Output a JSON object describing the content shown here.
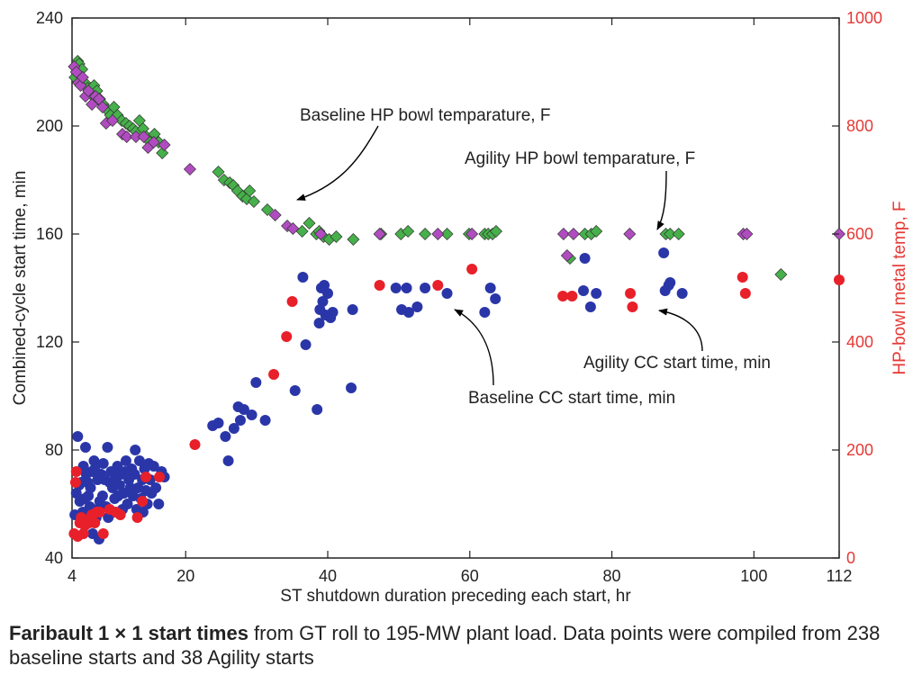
{
  "caption": {
    "bold": "Faribault 1 × 1 start times",
    "rest": " from GT roll to 195-MW plant load. Data points were compiled from 238 baseline starts and 38 Agility starts"
  },
  "chart_data": {
    "type": "scatter",
    "xlabel": "ST shutdown duration preceding each start, hr",
    "ylabel": "Combined-cycle start time, min",
    "y2label": "HP-bowl metal temp, F",
    "xlim": [
      4,
      112
    ],
    "ylim": [
      40,
      240
    ],
    "y2lim": [
      0,
      1000
    ],
    "xticks": [
      "4",
      "20",
      "40",
      "60",
      "80",
      "100",
      "112"
    ],
    "xtick_values": [
      4,
      20,
      40,
      60,
      80,
      100,
      112
    ],
    "yticks": [
      "40",
      "80",
      "120",
      "160",
      "200",
      "240"
    ],
    "ytick_values": [
      40,
      80,
      120,
      160,
      200,
      240
    ],
    "y2ticks": [
      "0",
      "200",
      "400",
      "600",
      "800",
      "1000"
    ],
    "y2tick_values": [
      0,
      200,
      400,
      600,
      800,
      1000
    ],
    "grid": false,
    "colors": {
      "baseline_cc": "#2a36a8",
      "agility_cc": "#e8202a",
      "baseline_temp": "#46b04a",
      "agility_temp": "#b04cc0",
      "right_axis": "#e53935",
      "pointer": "#000000"
    },
    "annotations": [
      {
        "text": "Baseline HP bowl temparature, F",
        "series": "Baseline HP bowl temparature, F"
      },
      {
        "text": "Agility HP bowl temparature, F",
        "series": "Agility HP bowl temparature, F"
      },
      {
        "text": "Agility CC start time, min",
        "series": "Agility CC start time, min"
      },
      {
        "text": "Baseline CC start time, min",
        "series": "Baseline CC start time, min"
      }
    ],
    "series": [
      {
        "name": "Baseline CC start time, min",
        "marker": "circle",
        "axis": "left",
        "x": [
          4.4,
          4.6,
          4.8,
          5.0,
          5.1,
          5.3,
          5.5,
          5.6,
          5.8,
          5.9,
          6.0,
          6.2,
          6.3,
          6.5,
          6.6,
          6.8,
          6.9,
          7.1,
          7.2,
          7.4,
          7.5,
          7.6,
          7.8,
          7.9,
          8.1,
          8.3,
          8.4,
          8.6,
          8.8,
          9.0,
          9.1,
          9.3,
          9.5,
          9.7,
          9.8,
          10.0,
          10.2,
          10.4,
          10.5,
          10.7,
          10.9,
          11.1,
          11.3,
          11.5,
          11.6,
          11.8,
          12.0,
          12.2,
          12.4,
          12.6,
          12.8,
          12.9,
          13.1,
          13.3,
          13.5,
          13.7,
          13.9,
          14.0,
          14.2,
          14.4,
          14.6,
          14.8,
          15.0,
          15.2,
          15.5,
          15.8,
          16.2,
          16.6,
          17.0,
          23.8,
          24.6,
          25.6,
          26.0,
          26.8,
          27.4,
          27.7,
          28.2,
          29.3,
          29.9,
          31.2,
          35.4,
          36.5,
          36.9,
          38.5,
          38.8,
          38.9,
          39.1,
          39.3,
          39.5,
          39.7,
          40.0,
          40.4,
          40.7,
          43.3,
          43.5,
          49.6,
          50.4,
          51.1,
          51.4,
          52.6,
          53.7,
          56.8,
          62.1,
          62.9,
          63.6,
          76.0,
          76.2,
          77.0,
          77.8,
          87.3,
          87.5,
          88.0,
          88.2,
          89.9
        ],
        "y": [
          56,
          64,
          85,
          67,
          61,
          68,
          57,
          74,
          62,
          81,
          71,
          68,
          63,
          59,
          66,
          72,
          49,
          76,
          73,
          55,
          58,
          69,
          47,
          61,
          71,
          63,
          75,
          69,
          59,
          81,
          55,
          68,
          72,
          66,
          57,
          62,
          70,
          74,
          63,
          67,
          71,
          58,
          64,
          72,
          76,
          60,
          69,
          66,
          73,
          63,
          71,
          80,
          58,
          66,
          76,
          62,
          69,
          57,
          73,
          65,
          60,
          75,
          69,
          64,
          74,
          66,
          60,
          72,
          70,
          89,
          90,
          85,
          76,
          88,
          96,
          91,
          95,
          93,
          105,
          91,
          102,
          144,
          119,
          95,
          127,
          132,
          140,
          135,
          141,
          130,
          138,
          129,
          131,
          103,
          132,
          140,
          132,
          140,
          131,
          133,
          140,
          138,
          131,
          140,
          136,
          139,
          151,
          133,
          138,
          153,
          139,
          141,
          142,
          138
        ],
        "x_approx": true
      },
      {
        "name": "Agility CC start time, min",
        "marker": "circle",
        "axis": "left",
        "x": [
          4.3,
          4.5,
          4.6,
          4.8,
          5.1,
          5.3,
          5.6,
          5.8,
          6.0,
          6.4,
          6.8,
          7.2,
          7.5,
          7.9,
          8.4,
          9.3,
          10.2,
          10.8,
          13.2,
          13.9,
          14.4,
          16.3,
          21.3,
          32.4,
          34.2,
          35.0,
          47.3,
          55.5,
          60.3,
          73.1,
          74.4,
          82.6,
          82.9,
          98.4,
          98.8,
          112
        ],
        "y": [
          49,
          68,
          72,
          48,
          53,
          55,
          49,
          52,
          54,
          53,
          56,
          53,
          57,
          57,
          49,
          58,
          57,
          56,
          55,
          61,
          70,
          70,
          82,
          108,
          122,
          135,
          141,
          141,
          147,
          137,
          137,
          138,
          133,
          144,
          138,
          143
        ]
      },
      {
        "name": "Baseline HP bowl temparature, F",
        "marker": "diamond",
        "axis": "right",
        "x": [
          4.4,
          4.6,
          4.8,
          5.0,
          5.4,
          5.8,
          6.2,
          6.6,
          7.1,
          7.5,
          7.9,
          8.4,
          8.9,
          9.4,
          9.9,
          10.4,
          11.0,
          11.6,
          12.1,
          12.6,
          13.0,
          13.5,
          14.0,
          14.5,
          15.0,
          15.6,
          16.2,
          16.7,
          24.6,
          25.4,
          26.2,
          26.7,
          27.3,
          28.0,
          28.6,
          29.0,
          29.6,
          31.5,
          36.4,
          37.4,
          38.4,
          38.8,
          39.4,
          40.2,
          41.2,
          43.6,
          47.5,
          50.3,
          51.3,
          53.7,
          56.8,
          59.9,
          62.1,
          62.6,
          63.2,
          63.7,
          74.1,
          76.2,
          77.1,
          77.8,
          87.6,
          88.2,
          89.4,
          103.8
        ],
        "y": [
          890,
          910,
          920,
          915,
          905,
          880,
          870,
          860,
          875,
          865,
          850,
          840,
          830,
          820,
          835,
          820,
          810,
          805,
          800,
          795,
          790,
          810,
          795,
          780,
          770,
          785,
          770,
          750,
          715,
          700,
          695,
          690,
          680,
          670,
          665,
          680,
          660,
          645,
          605,
          620,
          600,
          605,
          595,
          590,
          595,
          590,
          600,
          600,
          605,
          600,
          600,
          600,
          600,
          600,
          600,
          605,
          555,
          600,
          600,
          605,
          600,
          600,
          600,
          525
        ]
      },
      {
        "name": "Agility HP bowl temparature, F",
        "marker": "diamond",
        "axis": "right",
        "x": [
          4.3,
          4.6,
          4.9,
          5.2,
          5.5,
          5.9,
          6.3,
          6.8,
          7.3,
          7.8,
          8.3,
          8.8,
          9.7,
          11.1,
          11.7,
          13.0,
          14.1,
          14.7,
          15.5,
          17.0,
          20.6,
          32.6,
          34.3,
          35.1,
          39.0,
          47.3,
          55.5,
          60.3,
          73.2,
          73.7,
          74.6,
          82.5,
          98.5,
          99.0,
          112
        ],
        "y": [
          910,
          900,
          880,
          875,
          890,
          855,
          865,
          840,
          855,
          850,
          835,
          805,
          810,
          785,
          780,
          780,
          780,
          760,
          770,
          765,
          720,
          635,
          615,
          610,
          600,
          600,
          600,
          600,
          600,
          560,
          600,
          600,
          600,
          600,
          600
        ]
      }
    ]
  }
}
